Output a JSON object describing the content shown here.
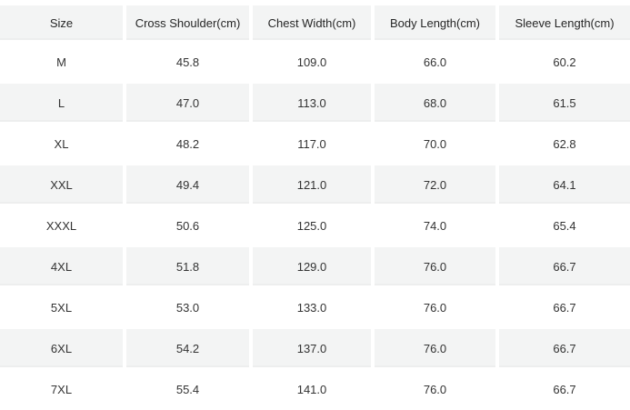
{
  "chart_data": {
    "type": "table",
    "columns": [
      "Size",
      "Cross Shoulder(cm)",
      "Chest Width(cm)",
      "Body Length(cm)",
      "Sleeve Length(cm)"
    ],
    "rows": [
      [
        "M",
        "45.8",
        "109.0",
        "66.0",
        "60.2"
      ],
      [
        "L",
        "47.0",
        "113.0",
        "68.0",
        "61.5"
      ],
      [
        "XL",
        "48.2",
        "117.0",
        "70.0",
        "62.8"
      ],
      [
        "XXL",
        "49.4",
        "121.0",
        "72.0",
        "64.1"
      ],
      [
        "XXXL",
        "50.6",
        "125.0",
        "74.0",
        "65.4"
      ],
      [
        "4XL",
        "51.8",
        "129.0",
        "76.0",
        "66.7"
      ],
      [
        "5XL",
        "53.0",
        "133.0",
        "76.0",
        "66.7"
      ],
      [
        "6XL",
        "54.2",
        "137.0",
        "76.0",
        "66.7"
      ],
      [
        "7XL",
        "55.4",
        "141.0",
        "76.0",
        "66.7"
      ]
    ],
    "layout": {
      "header_striped": true,
      "zebra_striping": "odd-data-rows-grey",
      "cell_alignment": "center"
    }
  },
  "colors": {
    "page_bg": "#ffffff",
    "header_bg": "#f3f4f4",
    "stripe_bg": "#f3f4f4",
    "row_bg": "#ffffff",
    "header_text": "#262626",
    "cell_text": "#333333"
  }
}
